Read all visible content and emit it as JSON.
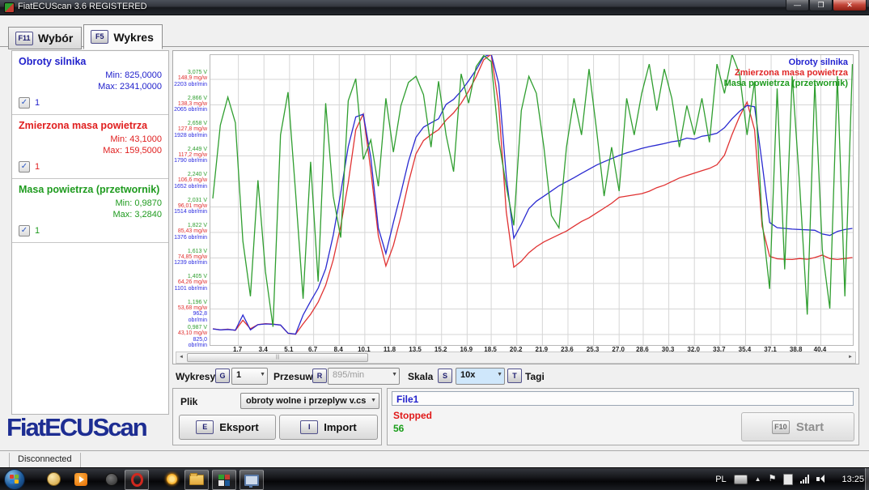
{
  "window": {
    "title": "FiatECUScan 3.6 REGISTERED"
  },
  "tabs": [
    {
      "key": "F11",
      "label": "Wybór"
    },
    {
      "key": "F5",
      "label": "Wykres"
    }
  ],
  "signals": [
    {
      "name": "Obroty silnika",
      "min_label": "Min: 825,0000",
      "max_label": "Max: 2341,0000",
      "checkbox_label": "1",
      "color": "#2222cc"
    },
    {
      "name": "Zmierzona masa powietrza",
      "min_label": "Min: 43,1000",
      "max_label": "Max: 159,5000",
      "checkbox_label": "1",
      "color": "#e02020"
    },
    {
      "name": "Masa powietrza (przetwornik)",
      "min_label": "Min: 0,9870",
      "max_label": "Max: 3,2840",
      "checkbox_label": "1",
      "color": "#1f9b1f"
    }
  ],
  "logo": "FiatECUScan",
  "chart_data": {
    "type": "line",
    "legend": [
      {
        "label": "Obroty silnika",
        "color": "#2323cf"
      },
      {
        "label": "Zmierzona masa powietrza",
        "color": "#e02828"
      },
      {
        "label": "Masa powietrza (przetwornik)",
        "color": "#1f9b1f"
      }
    ],
    "y_axis_groups": [
      {
        "v": "3,075 V",
        "mg": "148,9 mg/w",
        "rpm": "2203 obr/min"
      },
      {
        "v": "2,866 V",
        "mg": "138,3 mg/w",
        "rpm": "2065 obr/min"
      },
      {
        "v": "2,658 V",
        "mg": "127,8 mg/w",
        "rpm": "1928 obr/min"
      },
      {
        "v": "2,449 V",
        "mg": "117,2 mg/w",
        "rpm": "1790 obr/min"
      },
      {
        "v": "2,240 V",
        "mg": "106,6 mg/w",
        "rpm": "1652 obr/min"
      },
      {
        "v": "2,031 V",
        "mg": "96,01 mg/w",
        "rpm": "1514 obr/min"
      },
      {
        "v": "1,822 V",
        "mg": "85,43 mg/w",
        "rpm": "1376 obr/min"
      },
      {
        "v": "1,613 V",
        "mg": "74,85 mg/w",
        "rpm": "1239 obr/min"
      },
      {
        "v": "1,405 V",
        "mg": "64,26 mg/w",
        "rpm": "1101 obr/min"
      },
      {
        "v": "1,196 V",
        "mg": "53,68 mg/w",
        "rpm": "962,8 obr/min"
      },
      {
        "v": "0,987 V",
        "mg": "43,10 mg/w",
        "rpm": "825,0 obr/min"
      }
    ],
    "x_ticks": [
      "1,7",
      "3,4",
      "5,1",
      "6,7",
      "8,4",
      "10,1",
      "11,8",
      "13,5",
      "15,2",
      "16,9",
      "18,5",
      "20,2",
      "21,9",
      "23,6",
      "25,3",
      "27,0",
      "28,6",
      "30,3",
      "32,0",
      "33,7",
      "35,4",
      "37,1",
      "38,8",
      "40,4"
    ],
    "x_start": 0,
    "x_step": 0.5,
    "series": [
      {
        "name": "Zmierzona masa powietrza",
        "unit": "mg/w",
        "color": "#e03232",
        "axis": {
          "min": 43.1,
          "step": 10.58
        },
        "values": [
          45.5,
          45.0,
          45.3,
          44.8,
          49.0,
          45.5,
          47.2,
          47.6,
          47.4,
          47.0,
          43.6,
          43.2,
          47.5,
          51.5,
          56.5,
          63.5,
          74.0,
          88.0,
          106.0,
          128.0,
          134.5,
          111.0,
          84.0,
          71.5,
          80.0,
          92.0,
          106.0,
          118.0,
          123.5,
          126.0,
          128.0,
          132.0,
          135.0,
          139.0,
          144.0,
          150.0,
          157.0,
          159.3,
          138.0,
          94.0,
          71.0,
          73.5,
          77.0,
          79.5,
          81.5,
          83.0,
          84.5,
          86.0,
          88.0,
          90.0,
          91.5,
          93.5,
          95.5,
          97.5,
          100.0,
          100.5,
          101.0,
          101.5,
          102.5,
          104.0,
          105.0,
          106.5,
          108.0,
          109.0,
          110.0,
          111.0,
          112.0,
          113.5,
          117.5,
          126.0,
          133.5,
          139.5,
          128.0,
          88.0,
          75.5,
          74.5,
          74.3,
          74.2,
          74.6,
          74.3,
          75.0,
          76.0,
          74.6,
          74.2,
          74.6,
          75.0
        ]
      },
      {
        "name": "Obroty silnika",
        "unit": "obr/min",
        "color": "#2a2ad0",
        "axis": {
          "min": 825,
          "step": 137.8
        },
        "values": [
          855,
          850,
          852,
          848,
          930,
          850,
          878,
          882,
          880,
          876,
          832,
          827,
          930,
          1005,
          1075,
          1180,
          1360,
          1590,
          1840,
          2000,
          2015,
          1780,
          1400,
          1262,
          1430,
          1590,
          1760,
          1890,
          1945,
          1968,
          1990,
          2068,
          2095,
          2140,
          2195,
          2255,
          2325,
          2341,
          2180,
          1680,
          1345,
          1420,
          1505,
          1545,
          1572,
          1600,
          1628,
          1650,
          1672,
          1695,
          1718,
          1740,
          1758,
          1775,
          1792,
          1806,
          1818,
          1830,
          1840,
          1848,
          1856,
          1866,
          1872,
          1886,
          1880,
          1896,
          1902,
          1912,
          1942,
          1990,
          2030,
          2062,
          2055,
          1750,
          1430,
          1402,
          1398,
          1394,
          1392,
          1390,
          1388,
          1368,
          1360,
          1382,
          1392,
          1398
        ]
      },
      {
        "name": "Masa powietrza (przetwornik)",
        "unit": "V",
        "color": "#2f9e2f",
        "axis": {
          "min": 0.987,
          "step": 0.2088
        },
        "values": [
          2.1,
          2.7,
          2.93,
          2.72,
          1.75,
          1.3,
          2.25,
          1.5,
          1.05,
          2.62,
          2.97,
          2.15,
          1.28,
          2.4,
          1.42,
          2.88,
          2.12,
          1.78,
          2.9,
          3.08,
          2.42,
          2.58,
          2.2,
          2.92,
          2.48,
          2.86,
          3.05,
          3.1,
          2.95,
          2.52,
          3.06,
          2.62,
          2.32,
          3.12,
          2.88,
          3.18,
          3.27,
          3.22,
          2.58,
          2.2,
          1.88,
          2.82,
          3.1,
          2.96,
          2.52,
          1.96,
          1.86,
          2.52,
          2.92,
          2.62,
          3.16,
          2.66,
          2.12,
          2.52,
          2.16,
          2.92,
          2.62,
          2.96,
          3.2,
          2.82,
          3.16,
          2.92,
          2.52,
          2.86,
          2.62,
          2.92,
          2.56,
          3.2,
          2.96,
          3.28,
          3.12,
          2.62,
          3.06,
          1.92,
          1.36,
          3.0,
          1.52,
          3.1,
          2.2,
          1.15,
          3.05,
          1.68,
          1.2,
          3.1,
          1.3,
          3.2
        ]
      }
    ]
  },
  "controls": {
    "wykresy_label": "Wykresy",
    "g_key": "G",
    "wykresy_value": "1",
    "przesuw_label": "Przesuw",
    "r_key": "R",
    "przesuw_value": "895/min",
    "skala_label": "Skala",
    "s_key": "S",
    "skala_value": "10x",
    "t_key": "T",
    "tagi_label": "Tagi",
    "dropdown_arrow": "▼"
  },
  "file_section": {
    "plik_label": "Plik",
    "file_dropdown_value": "obroty wolne i przeplyw v.cs",
    "eksport_key": "E",
    "eksport_label": "Eksport",
    "import_key": "I",
    "import_label": "Import"
  },
  "status_section": {
    "file_name": "File1",
    "status": "Stopped",
    "count": "56",
    "start_key": "F10",
    "start_label": "Start"
  },
  "statusbar": {
    "connection": "Disconnected"
  },
  "scrollbar": {
    "left_arrow": "◄",
    "right_arrow": "►",
    "grip": "|||"
  },
  "taskbar": {
    "language": "PL",
    "time": "13:25"
  },
  "checkbox_glyph": "✓"
}
